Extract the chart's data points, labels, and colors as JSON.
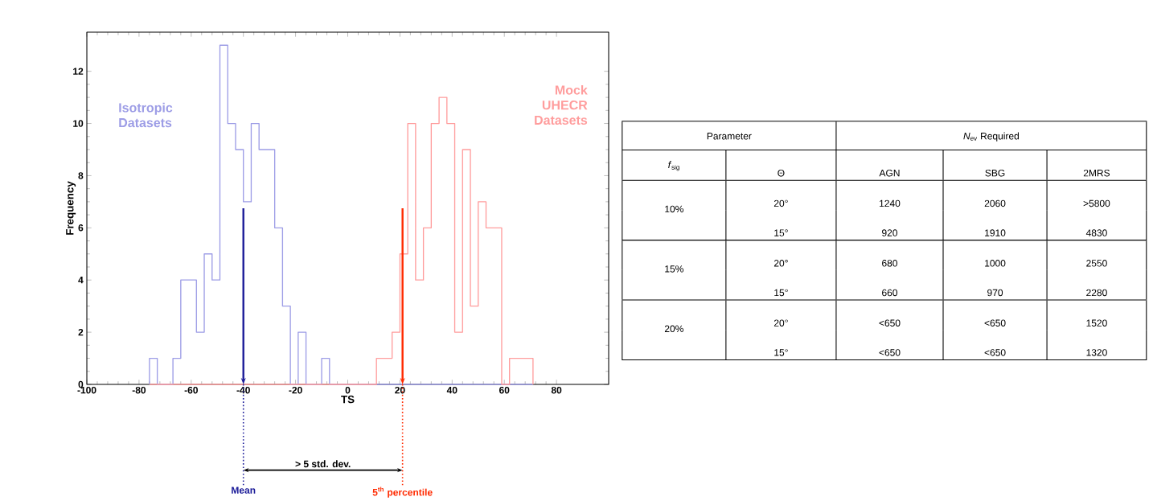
{
  "chart_data": [
    {
      "type": "histogram",
      "xlabel": "TS",
      "ylabel": "Frequency",
      "xlim": [
        -100,
        100
      ],
      "ylim": [
        0,
        13.5
      ],
      "xticks": [
        -100,
        -80,
        -60,
        -40,
        -20,
        0,
        20,
        40,
        60,
        80
      ],
      "yticks": [
        0,
        2,
        4,
        6,
        8,
        10,
        12
      ],
      "bins": [
        -76,
        -73,
        -70,
        -67,
        -64,
        -61,
        -58,
        -55,
        -52,
        -49,
        -46,
        -43,
        -40,
        -37,
        -34,
        -31,
        -28,
        -25,
        -22,
        -19,
        -16,
        -13,
        -10,
        -7,
        -4,
        -1,
        2,
        5,
        8,
        11,
        14,
        17,
        20,
        23,
        26,
        29,
        32,
        35,
        38,
        41,
        44,
        47,
        50,
        53,
        56,
        59,
        62,
        65,
        68,
        71
      ],
      "series": [
        {
          "name": "Isotropic Datasets",
          "color": "#9d9de6",
          "values": [
            1,
            0,
            0,
            1,
            4,
            4,
            2,
            5,
            4,
            13,
            10,
            9,
            7,
            10,
            9,
            9,
            6,
            3,
            0,
            2,
            0,
            0,
            1,
            0,
            0,
            0,
            0,
            0,
            0,
            0,
            0,
            0,
            0,
            0,
            0,
            0,
            0,
            0,
            0,
            0,
            0,
            0,
            0,
            0,
            0,
            0,
            0,
            0,
            0
          ]
        },
        {
          "name": "Mock UHECR Datasets",
          "color": "#ff9d9d",
          "values": [
            0,
            0,
            0,
            0,
            0,
            0,
            0,
            0,
            0,
            0,
            0,
            0,
            0,
            0,
            0,
            0,
            0,
            0,
            0,
            0,
            0,
            0,
            0,
            0,
            0,
            0,
            0,
            0,
            0,
            1,
            1,
            2,
            5,
            10,
            4,
            6,
            10,
            11,
            10,
            2,
            9,
            3,
            7,
            6,
            6,
            0,
            1,
            1,
            1
          ]
        }
      ],
      "ref_lines": [
        {
          "axis": "x",
          "value": -40,
          "label": "Mean",
          "color": "#1c1c99"
        },
        {
          "axis": "x",
          "value": 21,
          "label": "5$^{th}$ percentile",
          "color": "#ff2a00"
        }
      ],
      "annotations": [
        "> 5 std. dev."
      ]
    },
    {
      "type": "other",
      "annotations": [
        "Parameter",
        "*N*$_{ev}$ Required",
        "*f*$_{sig}$",
        "Θ",
        "AGN",
        "SBG",
        "2MRS",
        "10%",
        "15%",
        "20%",
        "20°",
        "1240",
        "2060",
        ">5800",
        "15°",
        "920",
        "1910",
        "4830",
        "20°",
        "680",
        "1000",
        "2550",
        "15°",
        "660",
        "970",
        "2280",
        "20°",
        "<650",
        "<650",
        "1520",
        "15°",
        "<650",
        "<650",
        "1320"
      ]
    }
  ]
}
